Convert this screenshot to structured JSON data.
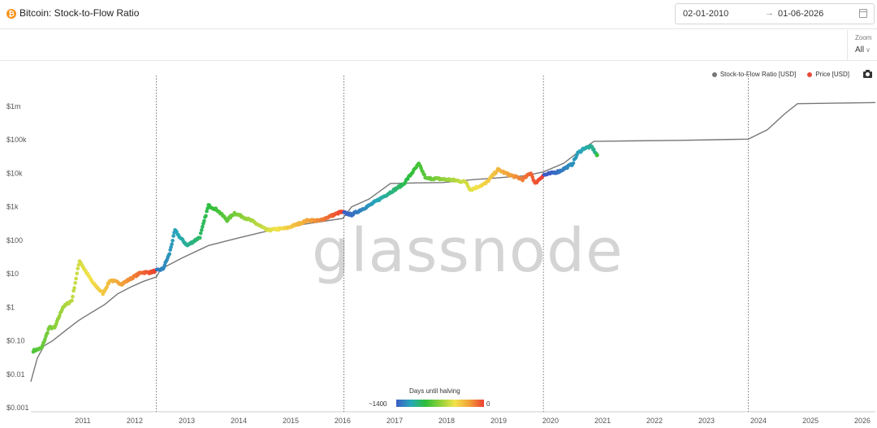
{
  "header": {
    "title": "Bitcoin: Stock-to-Flow Ratio",
    "date_start": "02-01-2010",
    "date_arrow": "→",
    "date_end": "01-06-2026"
  },
  "zoom": {
    "label": "Zoom",
    "value": "All",
    "chevron": "∨"
  },
  "watermark": "glassnode",
  "halving_legend": {
    "title": "Days until halving",
    "min_label": "~1400",
    "max_label": "0"
  },
  "chart_data": {
    "type": "line",
    "x_range": [
      "2010-07-01",
      "2026-09-30"
    ],
    "y_scale": "log",
    "y_range": [
      0.001,
      3000000
    ],
    "y_ticks": [
      {
        "value": 0.001,
        "label": "$0.001"
      },
      {
        "value": 0.01,
        "label": "$0.01"
      },
      {
        "value": 0.1,
        "label": "$0.10"
      },
      {
        "value": 1,
        "label": "$1"
      },
      {
        "value": 10,
        "label": "$10"
      },
      {
        "value": 100,
        "label": "$100"
      },
      {
        "value": 1000,
        "label": "$1k"
      },
      {
        "value": 10000,
        "label": "$10k"
      },
      {
        "value": 100000,
        "label": "$100k"
      },
      {
        "value": 1000000,
        "label": "$1m"
      }
    ],
    "x_ticks": [
      {
        "value": "2011-01-01",
        "label": "2011"
      },
      {
        "value": "2012-01-01",
        "label": "2012"
      },
      {
        "value": "2013-01-01",
        "label": "2013"
      },
      {
        "value": "2014-01-01",
        "label": "2014"
      },
      {
        "value": "2015-01-01",
        "label": "2015"
      },
      {
        "value": "2016-01-01",
        "label": "2016"
      },
      {
        "value": "2017-01-01",
        "label": "2017"
      },
      {
        "value": "2018-01-01",
        "label": "2018"
      },
      {
        "value": "2019-01-01",
        "label": "2019"
      },
      {
        "value": "2020-01-01",
        "label": "2020"
      },
      {
        "value": "2021-01-01",
        "label": "2021"
      },
      {
        "value": "2022-01-01",
        "label": "2022"
      },
      {
        "value": "2023-01-01",
        "label": "2023"
      },
      {
        "value": "2024-01-01",
        "label": "2024"
      },
      {
        "value": "2025-01-01",
        "label": "2025"
      },
      {
        "value": "2026-01-01",
        "label": "2026"
      }
    ],
    "halving_dates": [
      "2012-11-28",
      "2016-07-09",
      "2020-05-11",
      "2024-04-20"
    ],
    "grid": false,
    "legend_position": "top-right",
    "series": [
      {
        "name": "Stock-to-Flow Ratio [USD]",
        "color": "#777777",
        "points": [
          [
            "2010-07-01",
            0.006
          ],
          [
            "2010-08-15",
            0.03
          ],
          [
            "2010-10-01",
            0.07
          ],
          [
            "2010-12-01",
            0.1
          ],
          [
            "2011-03-01",
            0.2
          ],
          [
            "2011-06-01",
            0.4
          ],
          [
            "2011-09-01",
            0.7
          ],
          [
            "2011-12-01",
            1.2
          ],
          [
            "2012-03-01",
            2.5
          ],
          [
            "2012-06-01",
            4
          ],
          [
            "2012-09-01",
            6
          ],
          [
            "2012-11-28",
            8
          ],
          [
            "2013-01-01",
            14
          ],
          [
            "2013-06-01",
            30
          ],
          [
            "2013-12-01",
            70
          ],
          [
            "2014-06-01",
            110
          ],
          [
            "2014-12-01",
            170
          ],
          [
            "2015-06-01",
            250
          ],
          [
            "2015-12-01",
            330
          ],
          [
            "2016-07-01",
            450
          ],
          [
            "2016-07-09",
            500
          ],
          [
            "2016-09-01",
            1000
          ],
          [
            "2017-01-01",
            1700
          ],
          [
            "2017-06-01",
            5000
          ],
          [
            "2017-12-01",
            5200
          ],
          [
            "2018-06-01",
            5300
          ],
          [
            "2019-01-01",
            6500
          ],
          [
            "2019-06-01",
            7200
          ],
          [
            "2020-01-01",
            8500
          ],
          [
            "2020-05-11",
            11000
          ],
          [
            "2020-10-01",
            20000
          ],
          [
            "2021-01-01",
            40000
          ],
          [
            "2021-05-01",
            90000
          ],
          [
            "2022-01-01",
            93000
          ],
          [
            "2023-01-01",
            97000
          ],
          [
            "2024-04-20",
            105000
          ],
          [
            "2024-09-01",
            200000
          ],
          [
            "2025-01-01",
            600000
          ],
          [
            "2025-04-01",
            1200000
          ],
          [
            "2026-09-30",
            1300000
          ]
        ]
      },
      {
        "name": "Price [USD]",
        "color": "#e84a3a",
        "color_scale": "days_until_halving",
        "points": [
          [
            "2010-07-18",
            0.05
          ],
          [
            "2010-09-15",
            0.06
          ],
          [
            "2010-11-07",
            0.25
          ],
          [
            "2010-12-15",
            0.24
          ],
          [
            "2011-02-10",
            1.0
          ],
          [
            "2011-04-15",
            1.6
          ],
          [
            "2011-06-08",
            25
          ],
          [
            "2011-07-15",
            13
          ],
          [
            "2011-09-15",
            5
          ],
          [
            "2011-11-20",
            2.6
          ],
          [
            "2012-01-10",
            6.5
          ],
          [
            "2012-04-01",
            5
          ],
          [
            "2012-08-15",
            11
          ],
          [
            "2012-10-15",
            11
          ],
          [
            "2013-01-15",
            14
          ],
          [
            "2013-03-01",
            40
          ],
          [
            "2013-04-09",
            200
          ],
          [
            "2013-05-15",
            120
          ],
          [
            "2013-07-05",
            70
          ],
          [
            "2013-10-01",
            125
          ],
          [
            "2013-11-30",
            1100
          ],
          [
            "2014-02-01",
            800
          ],
          [
            "2014-04-10",
            400
          ],
          [
            "2014-06-01",
            650
          ],
          [
            "2014-10-01",
            380
          ],
          [
            "2015-01-15",
            200
          ],
          [
            "2015-06-01",
            230
          ],
          [
            "2015-11-04",
            400
          ],
          [
            "2016-01-15",
            380
          ],
          [
            "2016-06-17",
            700
          ],
          [
            "2016-09-01",
            580
          ],
          [
            "2017-01-04",
            1100
          ],
          [
            "2017-05-25",
            2600
          ],
          [
            "2017-09-01",
            4800
          ],
          [
            "2017-12-17",
            19000
          ],
          [
            "2018-02-06",
            7000
          ],
          [
            "2018-04-01",
            7000
          ],
          [
            "2018-08-01",
            6400
          ],
          [
            "2018-11-15",
            5500
          ],
          [
            "2018-12-15",
            3200
          ],
          [
            "2019-04-02",
            5000
          ],
          [
            "2019-06-26",
            13000
          ],
          [
            "2019-09-01",
            9500
          ],
          [
            "2019-12-17",
            6600
          ],
          [
            "2020-02-13",
            10300
          ],
          [
            "2020-03-13",
            5000
          ],
          [
            "2020-05-11",
            8800
          ],
          [
            "2020-09-01",
            11500
          ],
          [
            "2020-12-01",
            19000
          ],
          [
            "2021-01-08",
            40000
          ],
          [
            "2021-02-21",
            56000
          ],
          [
            "2021-04-14",
            63000
          ],
          [
            "2021-05-23",
            35000
          ]
        ]
      }
    ]
  }
}
